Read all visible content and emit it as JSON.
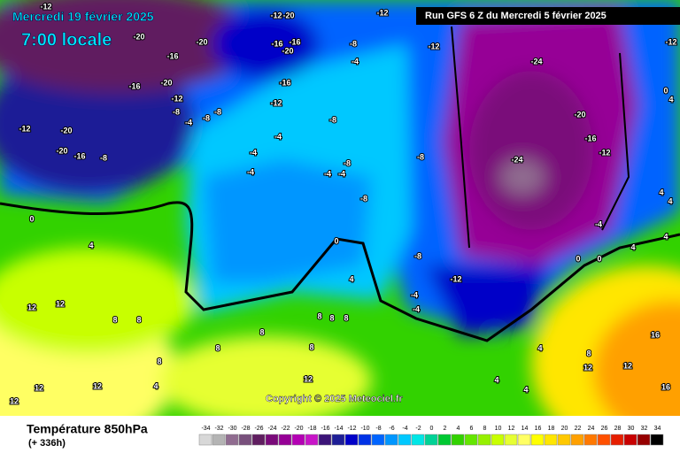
{
  "header": {
    "date": "Mercredi 19 février 2025",
    "time": "7:00 locale",
    "run": "Run GFS 6 Z du Mercredi 5 février 2025"
  },
  "copyright": "Copyright © 2025 Meteociel.fr",
  "footer": {
    "title": "Température 850hPa",
    "lead": "(+ 336h)"
  },
  "colorbar": {
    "values": [
      -34,
      -32,
      -30,
      -28,
      -26,
      -24,
      -22,
      -20,
      -18,
      -16,
      -14,
      -12,
      -10,
      -8,
      -6,
      -4,
      -2,
      0,
      2,
      4,
      6,
      8,
      10,
      12,
      14,
      16,
      18,
      20,
      22,
      24,
      26,
      28,
      30,
      32,
      34
    ],
    "colors": [
      "#d8d8d8",
      "#b4b4b4",
      "#906c90",
      "#78507c",
      "#601e60",
      "#7a0a7a",
      "#960096",
      "#b400b4",
      "#c814c8",
      "#3c1478",
      "#1e1e96",
      "#0000c8",
      "#0032e6",
      "#0064ff",
      "#0096ff",
      "#00c8ff",
      "#00e6e6",
      "#00d296",
      "#00c832",
      "#32d200",
      "#64e600",
      "#96f000",
      "#c8ff00",
      "#e6ff32",
      "#ffff64",
      "#ffff00",
      "#ffe600",
      "#ffc800",
      "#ffa000",
      "#ff7800",
      "#ff5000",
      "#e61e00",
      "#c80000",
      "#960000",
      "#000000"
    ]
  },
  "map_labels": [
    "-12",
    "-20",
    "-20",
    "-16",
    "-16",
    "-20",
    "-12",
    "-20",
    "-20",
    "-16",
    "-8",
    "-12",
    "-8",
    "-8",
    "-8",
    "-4",
    "-12",
    "-20",
    "-16",
    "-20",
    "-16",
    "-16",
    "-12",
    "-8",
    "-4",
    "-12",
    "-12",
    "-4",
    "-8",
    "-4",
    "-4",
    "-4",
    "-8",
    "-4",
    "-8",
    "-8",
    "-24",
    "-20",
    "-16",
    "-12",
    "-24",
    "-12",
    "-8",
    "-12",
    "-4",
    "-4",
    "-4",
    "0",
    "0",
    "4",
    "4",
    "12",
    "12",
    "8",
    "8",
    "8",
    "8",
    "8",
    "8",
    "8",
    "8",
    "8",
    "12",
    "12",
    "4",
    "12",
    "4",
    "4",
    "12",
    "16",
    "12",
    "16",
    "12",
    "8",
    "4",
    "4",
    "0",
    "0",
    "4",
    "4",
    "0",
    "4",
    "4"
  ]
}
